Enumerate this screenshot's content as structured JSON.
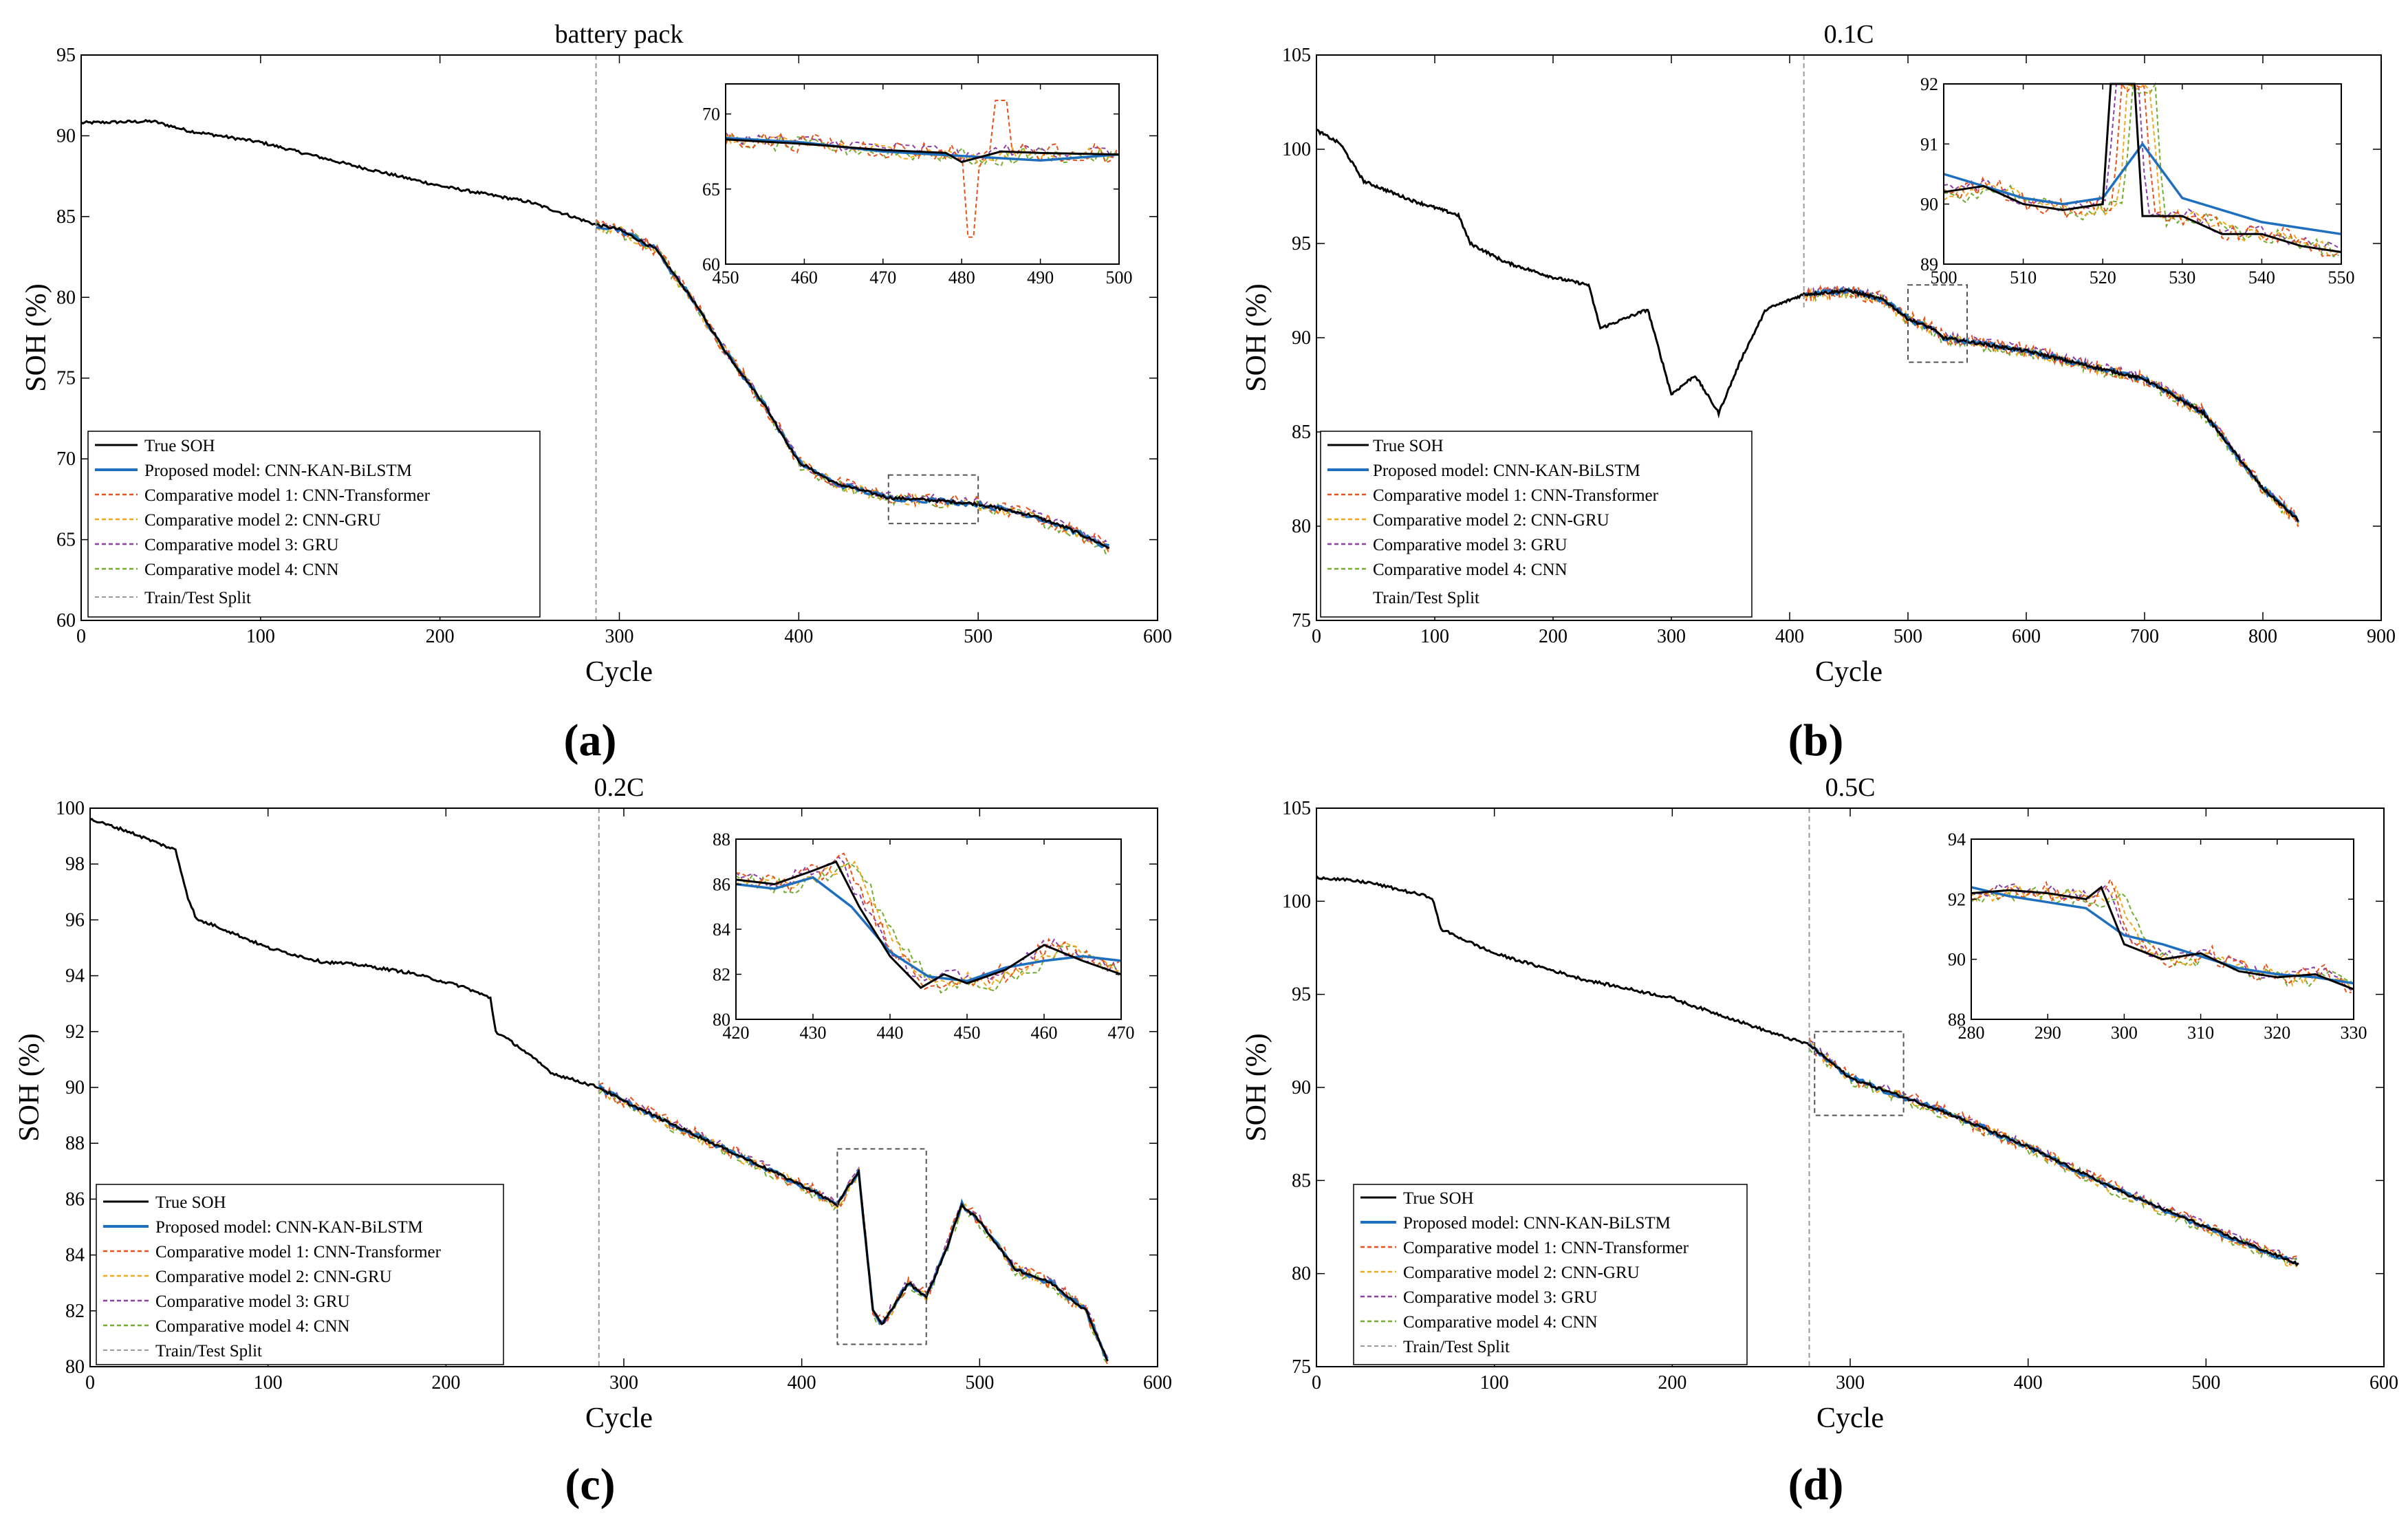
{
  "figure": {
    "panel_labels": [
      "(a)",
      "(b)",
      "(c)",
      "(d)"
    ]
  },
  "colors": {
    "true_soh": "#000000",
    "proposed": "#1f6fbf",
    "cnn_transformer": "#e8531c",
    "cnn_gru": "#f0a81a",
    "gru": "#8b3fa8",
    "cnn": "#72ad2f",
    "split": "#9a9a9a",
    "zoom_box": "#555555"
  },
  "legend_labels": {
    "true": "True SOH",
    "proposed": "Proposed model: CNN-KAN-BiLSTM",
    "m1": "Comparative model 1: CNN-Transformer",
    "m2": "Comparative model 2: CNN-GRU",
    "m3": "Comparative model 3: GRU",
    "m4": "Comparative model 4: CNN",
    "split": "Train/Test Split"
  },
  "chart_data": [
    {
      "type": "line",
      "panel": "(a)",
      "title": "battery pack",
      "xlabel": "Cycle",
      "ylabel": "SOH (%)",
      "xlim": [
        0,
        600
      ],
      "ylim": [
        60,
        95
      ],
      "xticks": [
        0,
        100,
        200,
        300,
        400,
        500,
        600
      ],
      "yticks": [
        60,
        65,
        70,
        75,
        80,
        85,
        90,
        95
      ],
      "split_cycle": 287,
      "end_cycle": 573,
      "zoom_box": {
        "x": [
          450,
          500
        ],
        "y": [
          66,
          69
        ]
      },
      "true_soh": [
        [
          0,
          90.8
        ],
        [
          40,
          90.9
        ],
        [
          60,
          90.3
        ],
        [
          100,
          89.6
        ],
        [
          150,
          88.2
        ],
        [
          200,
          86.9
        ],
        [
          250,
          85.9
        ],
        [
          287,
          84.5
        ],
        [
          300,
          84.2
        ],
        [
          320,
          83
        ],
        [
          340,
          80
        ],
        [
          360,
          76.5
        ],
        [
          380,
          73.5
        ],
        [
          400,
          69.8
        ],
        [
          420,
          68.5
        ],
        [
          450,
          67.6
        ],
        [
          480,
          67.4
        ],
        [
          500,
          67.2
        ],
        [
          530,
          66.5
        ],
        [
          550,
          65.7
        ],
        [
          573,
          64.5
        ]
      ],
      "inset": {
        "xlim": [
          450,
          500
        ],
        "ylim": [
          60,
          72
        ],
        "xticks": [
          450,
          460,
          470,
          480,
          490,
          500
        ],
        "yticks": [
          60,
          65,
          70
        ],
        "true_soh": [
          [
            450,
            68.3
          ],
          [
            460,
            68
          ],
          [
            470,
            67.6
          ],
          [
            478,
            67.4
          ],
          [
            480,
            66.8
          ],
          [
            485,
            67.5
          ],
          [
            490,
            67.4
          ],
          [
            500,
            67.3
          ]
        ],
        "proposed": [
          [
            450,
            68.4
          ],
          [
            460,
            68.1
          ],
          [
            470,
            67.5
          ],
          [
            480,
            67.2
          ],
          [
            490,
            66.9
          ],
          [
            500,
            67.3
          ]
        ],
        "spike": {
          "series": "cnn_transformer",
          "min": 61.8,
          "max": 70.9,
          "at": [
            481,
            485
          ]
        }
      }
    },
    {
      "type": "line",
      "panel": "(b)",
      "title": "0.1C",
      "xlabel": "Cycle",
      "ylabel": "SOH (%)",
      "xlim": [
        0,
        900
      ],
      "ylim": [
        75,
        105
      ],
      "xticks": [
        0,
        100,
        200,
        300,
        400,
        500,
        600,
        700,
        800,
        900
      ],
      "yticks": [
        75,
        80,
        85,
        90,
        95,
        100,
        105
      ],
      "split_cycle": 412,
      "end_cycle": 830,
      "zoom_box": {
        "x": [
          500,
          550
        ],
        "y": [
          88.7,
          92.8
        ]
      },
      "true_soh": [
        [
          0,
          101
        ],
        [
          20,
          100.3
        ],
        [
          40,
          98.3
        ],
        [
          80,
          97.3
        ],
        [
          120,
          96.5
        ],
        [
          130,
          95
        ],
        [
          160,
          94
        ],
        [
          200,
          93.2
        ],
        [
          230,
          92.8
        ],
        [
          240,
          90.5
        ],
        [
          260,
          91
        ],
        [
          280,
          91.5
        ],
        [
          300,
          87
        ],
        [
          320,
          88
        ],
        [
          340,
          86
        ],
        [
          360,
          89
        ],
        [
          380,
          91.5
        ],
        [
          400,
          92
        ],
        [
          412,
          92.3
        ],
        [
          450,
          92.5
        ],
        [
          480,
          92
        ],
        [
          500,
          91
        ],
        [
          520,
          90.5
        ],
        [
          530,
          90
        ],
        [
          600,
          89.3
        ],
        [
          700,
          87.8
        ],
        [
          750,
          86
        ],
        [
          800,
          82
        ],
        [
          830,
          80.3
        ]
      ],
      "inset": {
        "xlim": [
          500,
          550
        ],
        "ylim": [
          89,
          92
        ],
        "xticks": [
          500,
          510,
          520,
          530,
          540,
          550
        ],
        "yticks": [
          89,
          90,
          91,
          92
        ],
        "true_soh": [
          [
            500,
            90.2
          ],
          [
            505,
            90.3
          ],
          [
            510,
            90
          ],
          [
            515,
            89.9
          ],
          [
            520,
            90
          ],
          [
            521,
            92
          ],
          [
            524,
            92
          ],
          [
            525,
            89.8
          ],
          [
            530,
            89.8
          ],
          [
            535,
            89.5
          ],
          [
            540,
            89.5
          ],
          [
            545,
            89.3
          ],
          [
            550,
            89.2
          ]
        ],
        "proposed": [
          [
            500,
            90.5
          ],
          [
            505,
            90.3
          ],
          [
            510,
            90.1
          ],
          [
            515,
            90
          ],
          [
            520,
            90.1
          ],
          [
            525,
            91
          ],
          [
            530,
            90.1
          ],
          [
            540,
            89.7
          ],
          [
            550,
            89.5
          ]
        ]
      }
    },
    {
      "type": "line",
      "panel": "(c)",
      "title": "0.2C",
      "xlabel": "Cycle",
      "ylabel": "SOH (%)",
      "xlim": [
        0,
        600
      ],
      "ylim": [
        80,
        100
      ],
      "xticks": [
        0,
        100,
        200,
        300,
        400,
        500,
        600
      ],
      "yticks": [
        80,
        82,
        84,
        86,
        88,
        90,
        92,
        94,
        96,
        98,
        100
      ],
      "split_cycle": 286,
      "end_cycle": 572,
      "zoom_box": {
        "x": [
          420,
          470
        ],
        "y": [
          80.8,
          87.8
        ]
      },
      "true_soh": [
        [
          0,
          99.6
        ],
        [
          20,
          99.2
        ],
        [
          48,
          98.5
        ],
        [
          55,
          96.8
        ],
        [
          60,
          96
        ],
        [
          70,
          95.8
        ],
        [
          100,
          95
        ],
        [
          130,
          94.5
        ],
        [
          150,
          94.4
        ],
        [
          180,
          94.1
        ],
        [
          210,
          93.6
        ],
        [
          225,
          93.2
        ],
        [
          228,
          92
        ],
        [
          240,
          91.5
        ],
        [
          260,
          90.5
        ],
        [
          286,
          90
        ],
        [
          300,
          89.5
        ],
        [
          350,
          88
        ],
        [
          400,
          86.5
        ],
        [
          420,
          85.8
        ],
        [
          432,
          87
        ],
        [
          440,
          82
        ],
        [
          445,
          81.5
        ],
        [
          450,
          82
        ],
        [
          460,
          83
        ],
        [
          470,
          82.5
        ],
        [
          480,
          84
        ],
        [
          490,
          85.8
        ],
        [
          500,
          85.2
        ],
        [
          520,
          83.5
        ],
        [
          540,
          83
        ],
        [
          560,
          82
        ],
        [
          572,
          80.2
        ]
      ],
      "inset": {
        "xlim": [
          420,
          470
        ],
        "ylim": [
          80,
          88
        ],
        "xticks": [
          420,
          430,
          440,
          450,
          460,
          470
        ],
        "yticks": [
          80,
          82,
          84,
          86,
          88
        ],
        "true_soh": [
          [
            420,
            86.2
          ],
          [
            425,
            86
          ],
          [
            430,
            86.6
          ],
          [
            433,
            87
          ],
          [
            436,
            85
          ],
          [
            440,
            82.8
          ],
          [
            444,
            81.4
          ],
          [
            447,
            82
          ],
          [
            450,
            81.6
          ],
          [
            455,
            82.2
          ],
          [
            460,
            83.3
          ],
          [
            465,
            82.6
          ],
          [
            470,
            82
          ]
        ],
        "proposed": [
          [
            420,
            86
          ],
          [
            425,
            85.8
          ],
          [
            430,
            86.3
          ],
          [
            435,
            85
          ],
          [
            440,
            83
          ],
          [
            445,
            81.9
          ],
          [
            450,
            81.7
          ],
          [
            455,
            82.3
          ],
          [
            460,
            82.6
          ],
          [
            465,
            82.8
          ],
          [
            470,
            82.6
          ]
        ]
      }
    },
    {
      "type": "line",
      "panel": "(d)",
      "title": "0.5C",
      "xlabel": "Cycle",
      "ylabel": "SOH (%)",
      "xlim": [
        0,
        600
      ],
      "ylim": [
        75,
        105
      ],
      "xticks": [
        0,
        100,
        200,
        300,
        400,
        500,
        600
      ],
      "yticks": [
        75,
        80,
        85,
        90,
        95,
        100,
        105
      ],
      "split_cycle": 277,
      "end_cycle": 552,
      "zoom_box": {
        "x": [
          280,
          330
        ],
        "y": [
          88.5,
          93
        ]
      },
      "true_soh": [
        [
          0,
          101.3
        ],
        [
          30,
          101
        ],
        [
          65,
          100.2
        ],
        [
          70,
          98.5
        ],
        [
          100,
          97.2
        ],
        [
          150,
          95.8
        ],
        [
          200,
          94.8
        ],
        [
          208,
          94.5
        ],
        [
          230,
          93.8
        ],
        [
          260,
          92.8
        ],
        [
          277,
          92.3
        ],
        [
          300,
          90.5
        ],
        [
          350,
          88.8
        ],
        [
          400,
          86.8
        ],
        [
          450,
          84.5
        ],
        [
          500,
          82.5
        ],
        [
          552,
          80.5
        ]
      ],
      "inset": {
        "xlim": [
          280,
          330
        ],
        "ylim": [
          88,
          94
        ],
        "xticks": [
          280,
          290,
          300,
          310,
          320,
          330
        ],
        "yticks": [
          88,
          90,
          92,
          94
        ],
        "true_soh": [
          [
            280,
            92.2
          ],
          [
            285,
            92.3
          ],
          [
            290,
            92.2
          ],
          [
            295,
            92
          ],
          [
            297,
            92.4
          ],
          [
            300,
            90.5
          ],
          [
            305,
            90
          ],
          [
            310,
            90.2
          ],
          [
            315,
            89.6
          ],
          [
            320,
            89.4
          ],
          [
            325,
            89.5
          ],
          [
            330,
            89
          ]
        ],
        "proposed": [
          [
            280,
            92.4
          ],
          [
            285,
            92.1
          ],
          [
            290,
            91.9
          ],
          [
            295,
            91.7
          ],
          [
            300,
            90.8
          ],
          [
            305,
            90.5
          ],
          [
            310,
            90.1
          ],
          [
            315,
            89.7
          ],
          [
            320,
            89.5
          ],
          [
            325,
            89.4
          ],
          [
            330,
            89.2
          ]
        ]
      }
    }
  ]
}
